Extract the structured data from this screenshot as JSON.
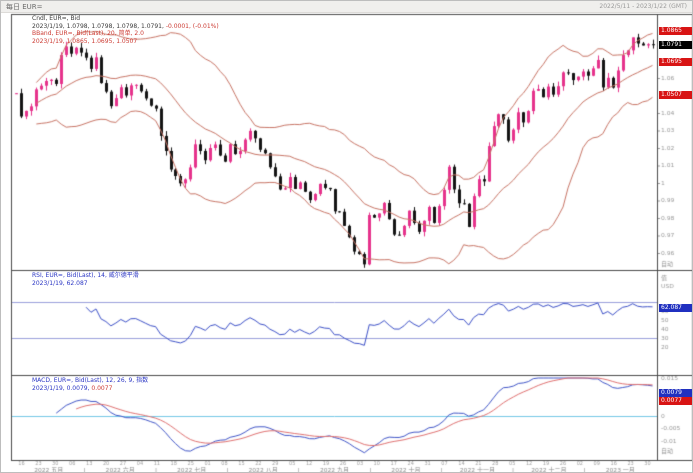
{
  "window": {
    "title": "每日 EUR=",
    "date_range": "2022/5/11 - 2023/1/22 (GMT)"
  },
  "colors": {
    "up": "#e6338c",
    "down": "#141414",
    "band": "#c87465",
    "rsi_line": "#3c50c8",
    "rsi_level": "#9aa0dc",
    "macd_line": "#4055c8",
    "signal_line": "#e07070",
    "zero_line": "#74c8e6",
    "badge_red": "#d81414",
    "badge_black": "#000000",
    "badge_blue": "#2030c0",
    "axis_text": "#999999",
    "frame": "#4a4a4a"
  },
  "legends": {
    "cndl": {
      "line1": "Cndl, EUR=, Bid",
      "line2": "2023/1/19, 1.0798, 1.0798, 1.0798, 1.0791, ",
      "line2_change": "-0.0001, (-0.01%)"
    },
    "bband": {
      "line1": "BBand, EUR=, Bid(Last), 20, 简单, 2.0",
      "line2": "2023/1/19, 1.0865, 1.0695, 1.0507"
    },
    "rsi": {
      "line1": "RSI, EUR=, Bid(Last), 14, 威尔德平滑",
      "line2": "2023/1/19, 62.087"
    },
    "macd": {
      "line1": "MACD, EUR=, Bid(Last), 12, 26, 9, 指数",
      "line2": "2023/1/19, 0.0079, ",
      "line2_signal": "0.0077"
    }
  },
  "badges": {
    "bb_upper": "1.0865",
    "last_price": "1.0791",
    "bb_mid": "1.0695",
    "bb_lower": "1.0507",
    "rsi": "62.087",
    "macd": "0.0079",
    "macd_signal": "0.0077"
  },
  "axis": {
    "price_labels": [
      "1.06",
      "1.04",
      "1.03",
      "1.02",
      "1.01",
      "1",
      "0.99",
      "0.98",
      "0.97",
      "0.96"
    ],
    "price_values": [
      1.06,
      1.04,
      1.03,
      1.02,
      1.01,
      1.0,
      0.99,
      0.98,
      0.97,
      0.96
    ],
    "auto_label": "自动",
    "rsi_header_line1": "值",
    "rsi_header_line2": "USD",
    "rsi_labels": [
      60,
      50,
      40,
      30,
      20
    ],
    "macd_labels": [
      "0.015",
      "0",
      "-0.005",
      "-0.01"
    ],
    "macd_values": [
      0.015,
      0,
      -0.005,
      -0.01
    ],
    "months": [
      "2022 五月",
      "2022 六月",
      "2022 七月",
      "2022 八月",
      "2022 九月",
      "2022 十月",
      "2022 十一月",
      "2022 十二月",
      "2023 一月"
    ],
    "day_ticks": [
      "16",
      "23",
      "30",
      "06",
      "13",
      "20",
      "27",
      "04",
      "11",
      "18",
      "25",
      "01",
      "08",
      "15",
      "22",
      "29",
      "05",
      "12",
      "19",
      "26",
      "03",
      "10",
      "17",
      "24",
      "31",
      "07",
      "14",
      "21",
      "28",
      "05",
      "12",
      "19",
      "26",
      "02",
      "09",
      "16",
      "23",
      "30"
    ]
  },
  "chart_data": {
    "type": "candlestick",
    "symbol": "EUR=",
    "title": "每日 EUR=",
    "x_range": "2022/5/11 - 2023/1/22 (GMT)",
    "price_ylim": [
      0.95,
      1.096
    ],
    "closes": [
      1.0513,
      1.038,
      1.0412,
      1.0438,
      1.0535,
      1.0556,
      1.0583,
      1.059,
      1.0566,
      1.0732,
      1.078,
      1.0739,
      1.0773,
      1.0745,
      1.0716,
      1.0652,
      1.0718,
      1.0571,
      1.0522,
      1.0439,
      1.0485,
      1.0547,
      1.05,
      1.0558,
      1.0561,
      1.0524,
      1.0483,
      1.0442,
      1.0425,
      1.0269,
      1.0183,
      1.0077,
      1.004,
      0.9998,
      1.0021,
      1.0089,
      1.0221,
      1.0183,
      1.013,
      1.02,
      1.022,
      1.0157,
      1.0122,
      1.0222,
      1.0165,
      1.0183,
      1.0248,
      1.0298,
      1.0255,
      1.019,
      1.017,
      1.009,
      1.0038,
      0.9963,
      0.997,
      1.0034,
      0.9966,
      1.0003,
      0.995,
      0.9902,
      0.9937,
      0.9995,
      0.9972,
      0.9965,
      0.9838,
      0.9836,
      0.9755,
      0.969,
      0.9608,
      0.9594,
      0.9535,
      0.9817,
      0.9802,
      0.9826,
      0.9886,
      0.9793,
      0.9705,
      0.9702,
      0.9755,
      0.9842,
      0.9772,
      0.9721,
      0.9784,
      0.9863,
      0.9772,
      0.9868,
      0.9961,
      1.0093,
      0.9963,
      0.9884,
      0.9881,
      0.9749,
      0.9925,
      1.0022,
      1.0009,
      1.0211,
      1.0325,
      1.0393,
      1.0363,
      1.0242,
      1.0305,
      1.0404,
      1.0346,
      1.0411,
      1.0527,
      1.0537,
      1.049,
      1.0551,
      1.0505,
      1.0553,
      1.0632,
      1.0628,
      1.0588,
      1.0608,
      1.0637,
      1.0613,
      1.0655,
      1.0703,
      1.0546,
      1.0601,
      1.0545,
      1.0643,
      1.0731,
      1.0758,
      1.0832,
      1.0797,
      1.0786,
      1.0793,
      1.0791
    ],
    "last_candle": {
      "date": "2023/1/19",
      "open": 1.0798,
      "high": 1.0798,
      "low": 1.0798,
      "close": 1.0791,
      "change": -0.0001,
      "change_pct": "-0.01%"
    },
    "indicators": [
      {
        "name": "BBand",
        "params": "20, 简单, 2.0",
        "last": {
          "upper": 1.0865,
          "middle": 1.0695,
          "lower": 1.0507
        }
      },
      {
        "name": "RSI",
        "params": "14, 威尔德平滑",
        "last": 62.087,
        "levels": [
          70,
          30
        ]
      },
      {
        "name": "MACD",
        "params": "12, 26, 9, 指数",
        "last": {
          "macd": 0.0079,
          "signal": 0.0077
        },
        "ylim": [
          -0.016,
          0.015
        ]
      }
    ]
  }
}
